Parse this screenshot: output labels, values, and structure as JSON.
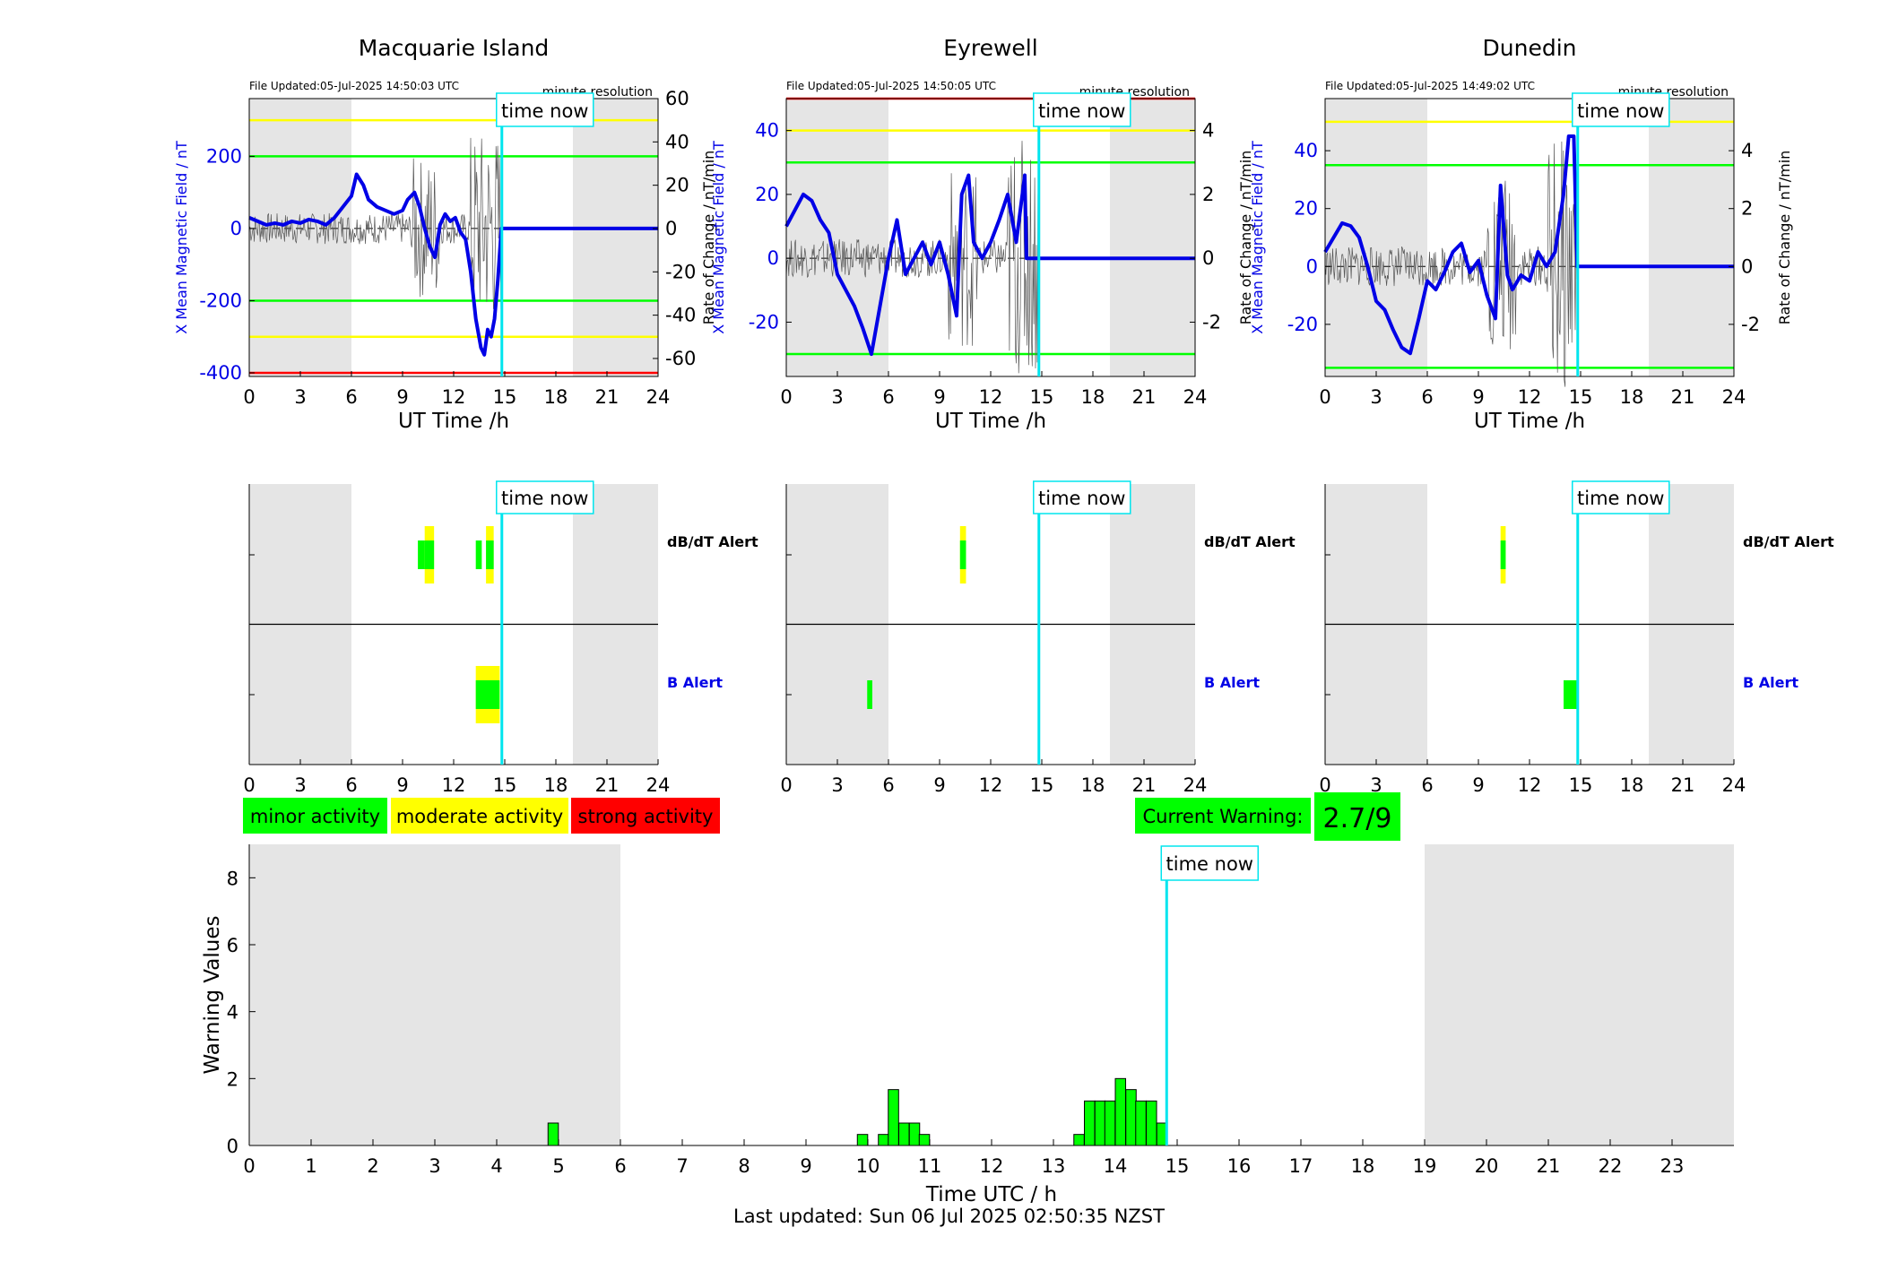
{
  "time_now_label": "time now",
  "stations": [
    {
      "name": "Macquarie Island",
      "file_updated": "File Updated:05-Jul-2025 14:50:03 UTC",
      "resolution": "minute resolution",
      "ylabel_left": "X Mean Magnetic Field / nT",
      "ylabel_right": "Rate of Change / nT/min",
      "xlabel": "UT Time /h",
      "left_ylim": [
        -410,
        360
      ],
      "left_ticks": [
        "-400",
        "-200",
        "0",
        "200"
      ],
      "right_ylim": [
        -68.3,
        60
      ],
      "right_ticks": [
        "-60",
        "-40",
        "-20",
        "0",
        "20",
        "40",
        "60"
      ],
      "thresholds": [
        {
          "value": 300,
          "color": "#ffff00"
        },
        {
          "value": 200,
          "color": "#00ff00"
        },
        {
          "value": -200,
          "color": "#00ff00"
        },
        {
          "value": -300,
          "color": "#ffff00"
        },
        {
          "value": -400,
          "color": "#ff0000"
        }
      ],
      "trace_x": [
        0,
        0.5,
        1,
        1.5,
        2,
        2.5,
        3,
        3.5,
        4,
        4.5,
        5,
        5.5,
        6,
        6.3,
        6.7,
        7,
        7.5,
        8,
        8.5,
        9,
        9.3,
        9.7,
        10,
        10.3,
        10.6,
        10.9,
        11.2,
        11.5,
        11.8,
        12.1,
        12.4,
        12.7,
        13,
        13.3,
        13.6,
        13.8,
        14,
        14.2,
        14.4,
        14.6,
        14.8,
        15,
        18,
        21,
        24
      ],
      "trace_y": [
        30,
        20,
        10,
        15,
        10,
        20,
        15,
        25,
        20,
        10,
        30,
        60,
        90,
        150,
        120,
        80,
        60,
        50,
        40,
        50,
        80,
        100,
        60,
        0,
        -50,
        -80,
        10,
        40,
        20,
        30,
        -10,
        -30,
        -120,
        -250,
        -330,
        -350,
        -280,
        -300,
        -250,
        -140,
        0,
        0,
        0,
        0,
        0
      ],
      "dbdt_alerts": [
        {
          "start": 10.3,
          "end": 10.85,
          "level": "moderate"
        },
        {
          "start": 9.9,
          "end": 10.3,
          "level": "minor"
        },
        {
          "start": 13.3,
          "end": 13.65,
          "level": "minor"
        },
        {
          "start": 13.9,
          "end": 14.35,
          "level": "moderate"
        }
      ],
      "b_alerts": [
        {
          "start": 13.3,
          "end": 14.7,
          "level": "moderate"
        }
      ]
    },
    {
      "name": "Eyrewell",
      "file_updated": "File Updated:05-Jul-2025 14:50:05 UTC",
      "resolution": "minute resolution",
      "ylabel_left": "X Mean Magnetic Field / nT",
      "ylabel_right": "Rate of Change / nT/min",
      "xlabel": "UT Time /h",
      "left_ylim": [
        -37,
        50
      ],
      "left_ticks": [
        "-20",
        "0",
        "20",
        "40"
      ],
      "right_ylim": [
        -3.7,
        5
      ],
      "right_ticks": [
        "-2",
        "0",
        "2",
        "4"
      ],
      "thresholds": [
        {
          "value": 50,
          "color": "#ff0000"
        },
        {
          "value": 40,
          "color": "#ffff00"
        },
        {
          "value": 30,
          "color": "#00ff00"
        },
        {
          "value": -30,
          "color": "#00ff00"
        }
      ],
      "trace_x": [
        0,
        0.5,
        1,
        1.5,
        2,
        2.5,
        3,
        3.5,
        4,
        4.5,
        5,
        5.5,
        6,
        6.5,
        7,
        7.5,
        8,
        8.5,
        9,
        9.5,
        10,
        10.3,
        10.7,
        11,
        11.5,
        12,
        12.5,
        13,
        13.5,
        14,
        14.1,
        15,
        18,
        21,
        24
      ],
      "trace_y": [
        10,
        15,
        20,
        18,
        12,
        8,
        -5,
        -10,
        -15,
        -22,
        -30,
        -15,
        0,
        12,
        -5,
        0,
        5,
        -2,
        5,
        -5,
        -18,
        20,
        26,
        5,
        0,
        5,
        12,
        20,
        5,
        26,
        0,
        0,
        0,
        0,
        0
      ],
      "dbdt_alerts": [
        {
          "start": 10.2,
          "end": 10.55,
          "level": "moderate"
        }
      ],
      "b_alerts": [
        {
          "start": 4.75,
          "end": 5.05,
          "level": "minor"
        }
      ]
    },
    {
      "name": "Dunedin",
      "file_updated": "File Updated:05-Jul-2025 14:49:02 UTC",
      "resolution": "minute resolution",
      "ylabel_left": "X Mean Magnetic Field / nT",
      "ylabel_right": "Rate of Change / nT/min",
      "xlabel": "UT Time /h",
      "left_ylim": [
        -38,
        58
      ],
      "left_ticks": [
        "-20",
        "0",
        "20",
        "40"
      ],
      "right_ylim": [
        -3.8,
        5.8
      ],
      "right_ticks": [
        "-2",
        "0",
        "2",
        "4"
      ],
      "thresholds": [
        {
          "value": 50,
          "color": "#ffff00"
        },
        {
          "value": 35,
          "color": "#00ff00"
        },
        {
          "value": -35,
          "color": "#00ff00"
        }
      ],
      "trace_x": [
        0,
        0.5,
        1,
        1.5,
        2,
        2.5,
        3,
        3.5,
        4,
        4.5,
        5,
        5.5,
        6,
        6.5,
        7,
        7.5,
        8,
        8.5,
        9,
        9.5,
        10,
        10.3,
        10.7,
        11,
        11.5,
        12,
        12.5,
        13,
        13.5,
        14,
        14.3,
        14.6,
        14.8,
        15,
        18,
        21,
        24
      ],
      "trace_y": [
        5,
        10,
        15,
        14,
        10,
        0,
        -12,
        -15,
        -22,
        -28,
        -30,
        -18,
        -5,
        -8,
        -2,
        5,
        8,
        -2,
        2,
        -10,
        -18,
        28,
        -3,
        -8,
        -3,
        -5,
        5,
        0,
        5,
        25,
        45,
        45,
        0,
        0,
        0,
        0,
        0
      ],
      "dbdt_alerts": [
        {
          "start": 10.3,
          "end": 10.6,
          "level": "moderate"
        }
      ],
      "b_alerts": [
        {
          "start": 14.0,
          "end": 14.8,
          "level": "minor"
        }
      ]
    }
  ],
  "alert_labels": {
    "dbdt": "dB/dT Alert",
    "b": "B Alert"
  },
  "legend": [
    {
      "label": "minor activity",
      "color": "#00ff00"
    },
    {
      "label": "moderate activity",
      "color": "#ffff00"
    },
    {
      "label": "strong activity",
      "color": "#ff0000"
    }
  ],
  "current_warning": {
    "label": "Current Warning:",
    "value": "2.7/9"
  },
  "chart_data": {
    "type": "bar",
    "xlabel": "Time UTC / h",
    "ylabel": "Warning Values",
    "ylim": [
      0,
      9
    ],
    "yticks": [
      "0",
      "2",
      "4",
      "6",
      "8"
    ],
    "xticks": [
      "0",
      "1",
      "2",
      "3",
      "4",
      "5",
      "6",
      "7",
      "8",
      "9",
      "10",
      "11",
      "12",
      "13",
      "14",
      "15",
      "16",
      "17",
      "18",
      "19",
      "20",
      "21",
      "22",
      "23"
    ],
    "xlim": [
      0,
      24
    ],
    "bar_width_h": 0.167,
    "bars_x": [
      4.83,
      9.83,
      10.17,
      10.33,
      10.5,
      10.67,
      10.83,
      13.33,
      13.5,
      13.67,
      13.83,
      14.0,
      14.17,
      14.33,
      14.5,
      14.67
    ],
    "bars_value": [
      0.67,
      0.33,
      0.33,
      1.67,
      0.67,
      0.67,
      0.33,
      0.33,
      1.33,
      1.33,
      1.33,
      2.0,
      1.67,
      1.33,
      1.33,
      0.67
    ],
    "time_now": 14.83
  },
  "time_now_hours": 14.83,
  "night_spans": [
    [
      0,
      6
    ],
    [
      19,
      24
    ]
  ],
  "footer": "Last updated: Sun 06 Jul 2025 02:50:35 NZST"
}
